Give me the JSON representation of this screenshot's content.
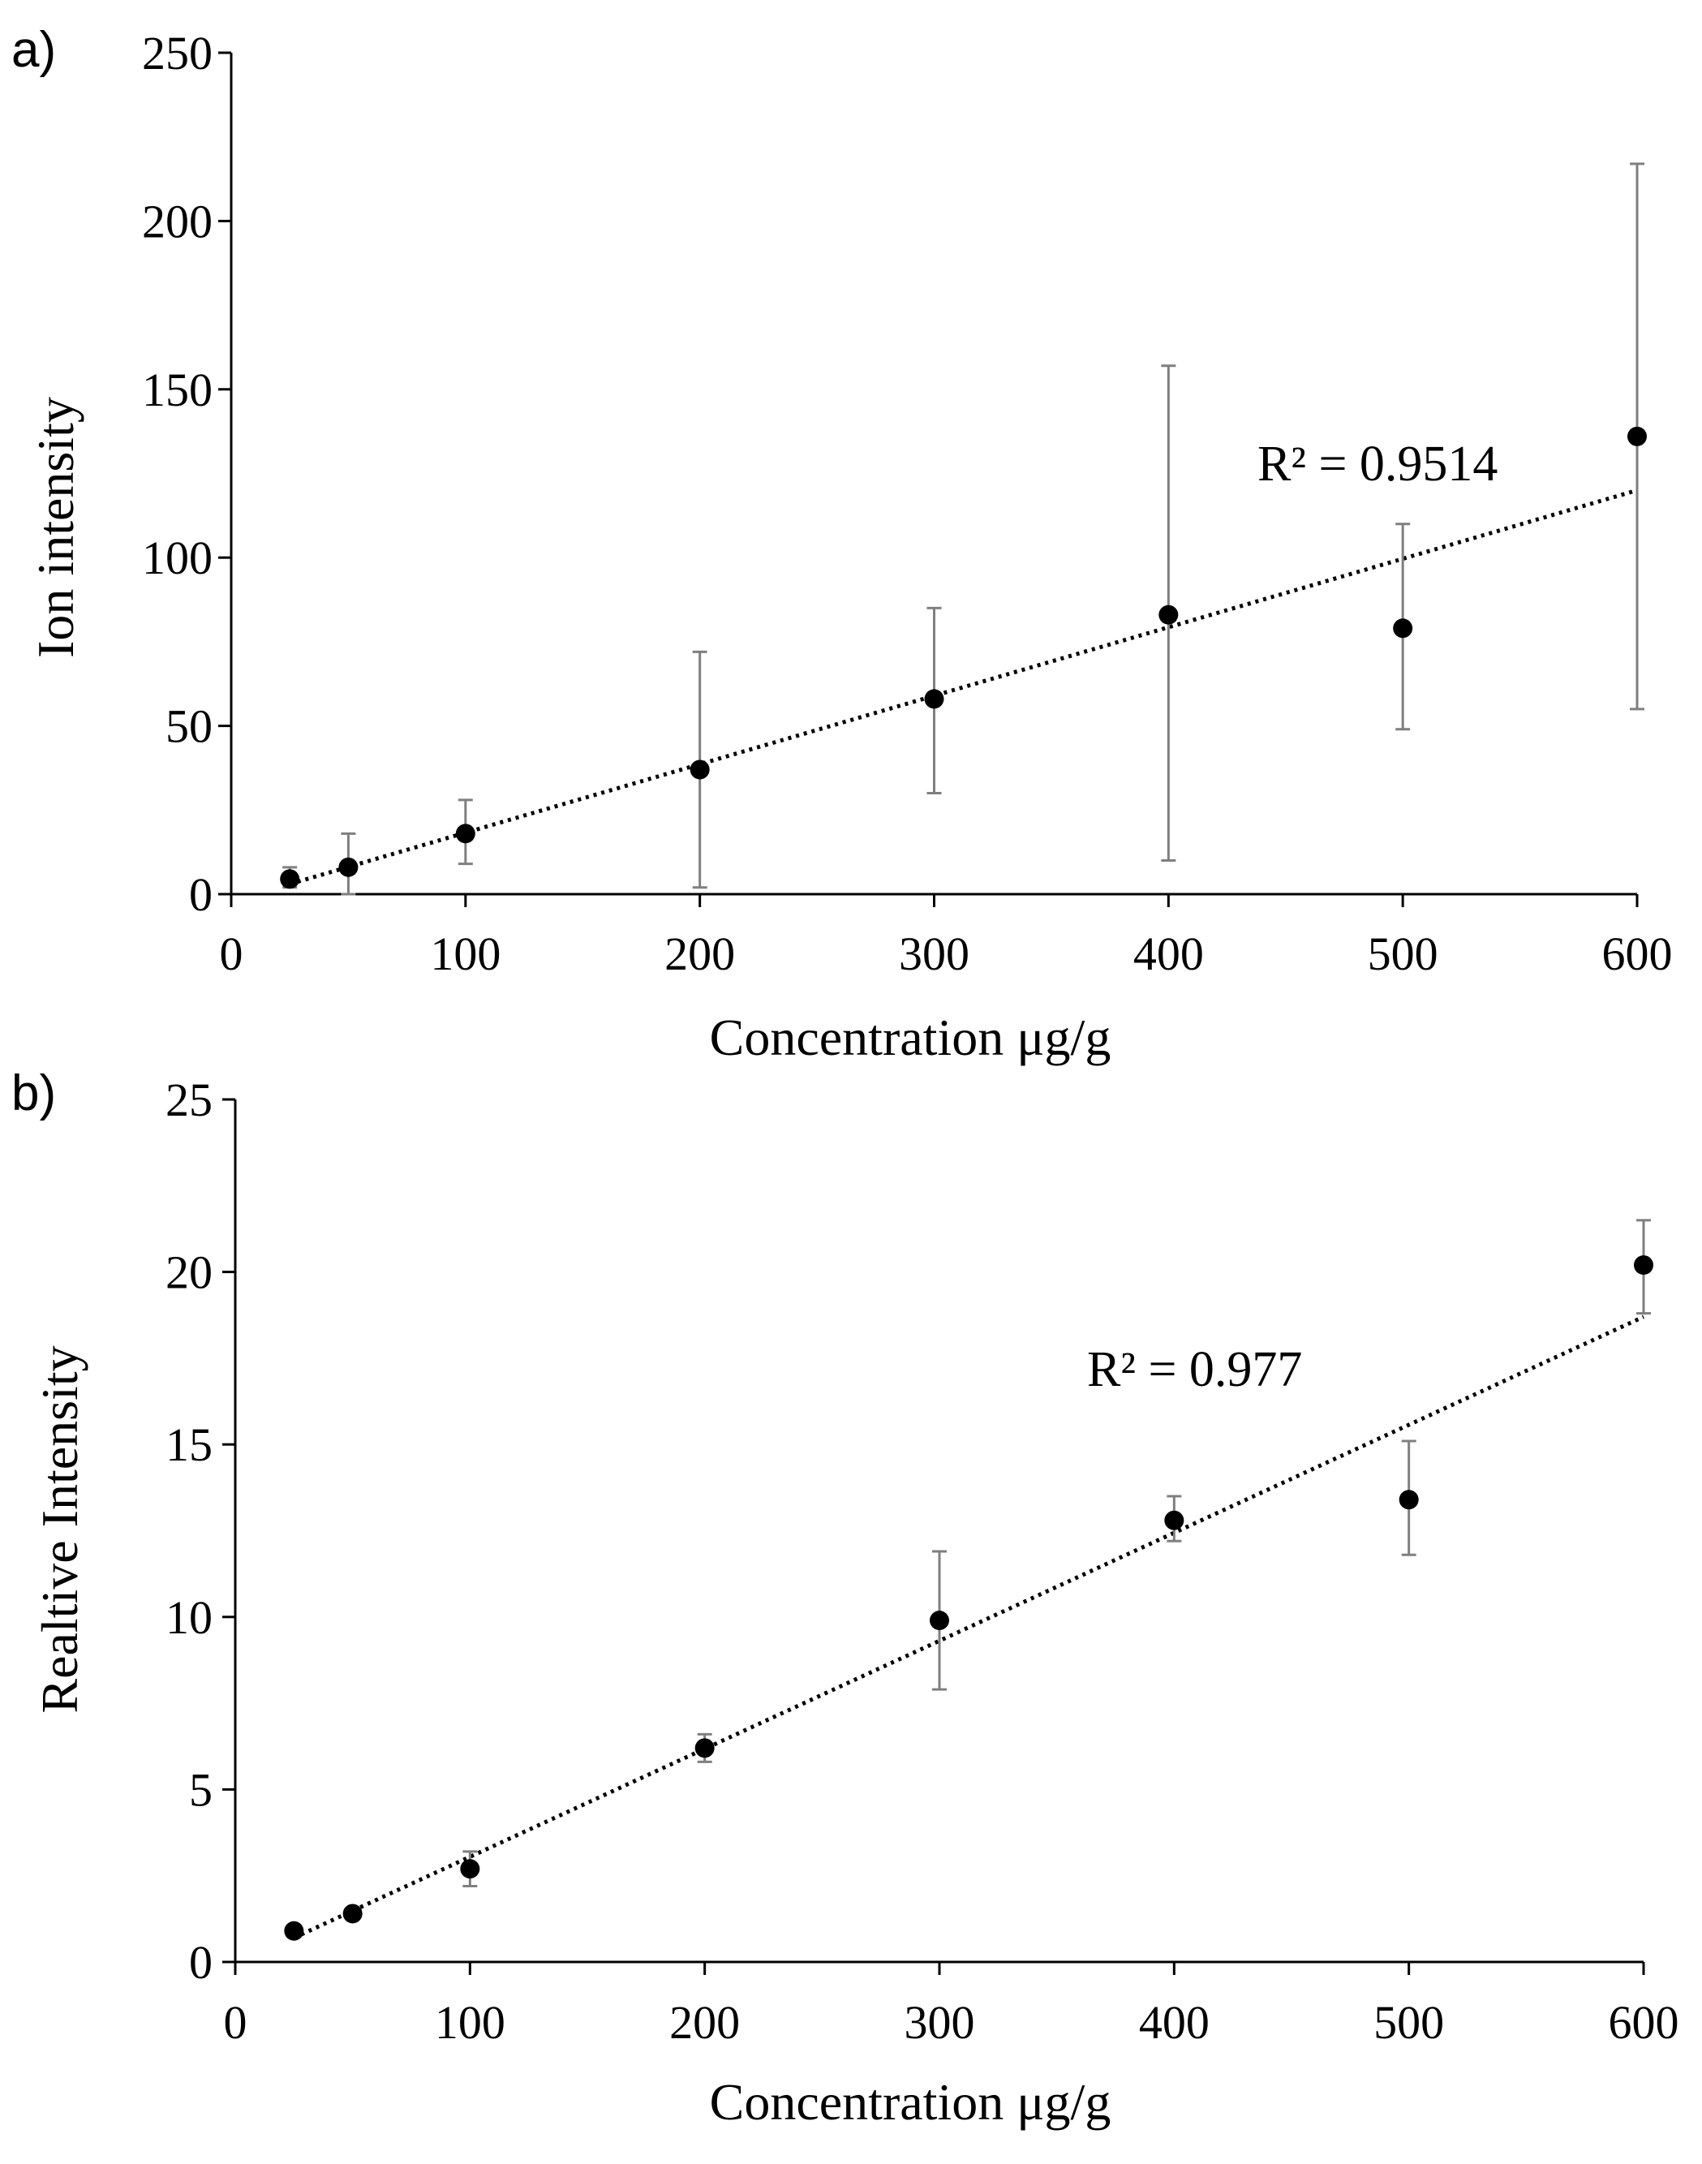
{
  "chart_data": [
    {
      "type": "scatter",
      "panel_label": "a)",
      "title": "",
      "xlabel": "Concentration μg/g",
      "ylabel": "Ion intensity",
      "xlim": [
        0,
        600
      ],
      "ylim": [
        0,
        250
      ],
      "xticks": [
        "0",
        "100",
        "200",
        "300",
        "400",
        "500",
        "600"
      ],
      "yticks": [
        "0",
        "50",
        "100",
        "150",
        "200",
        "250"
      ],
      "series": [
        {
          "name": "Ion intensity",
          "x": [
            25,
            50,
            100,
            200,
            300,
            400,
            500,
            600
          ],
          "y": [
            4.5,
            8,
            18,
            37,
            58,
            83,
            79,
            136
          ],
          "err_low": [
            2,
            0,
            9,
            2,
            30,
            10,
            49,
            55
          ],
          "err_high": [
            8,
            18,
            28,
            72,
            85,
            157,
            110,
            217
          ]
        }
      ],
      "trendline": {
        "type": "linear",
        "x": [
          25,
          600
        ],
        "y": [
          3,
          120
        ],
        "r2_label": "R² = 0.9514"
      },
      "grid": false
    },
    {
      "type": "scatter",
      "panel_label": "b)",
      "title": "",
      "xlabel": "Concentration μg/g",
      "ylabel": "Realtive Intensity",
      "xlim": [
        0,
        600
      ],
      "ylim": [
        0,
        25
      ],
      "xticks": [
        "0",
        "100",
        "200",
        "300",
        "400",
        "500",
        "600"
      ],
      "yticks": [
        "0",
        "5",
        "10",
        "15",
        "20",
        "25"
      ],
      "series": [
        {
          "name": "Relative intensity",
          "x": [
            25,
            50,
            100,
            200,
            300,
            400,
            500,
            600
          ],
          "y": [
            0.9,
            1.4,
            2.7,
            6.2,
            9.9,
            12.8,
            13.4,
            20.2
          ],
          "err_low": [
            0.9,
            1.4,
            2.2,
            5.8,
            7.9,
            12.2,
            11.8,
            18.8
          ],
          "err_high": [
            0.9,
            1.4,
            3.2,
            6.6,
            11.9,
            13.5,
            15.1,
            21.5
          ]
        }
      ],
      "trendline": {
        "type": "linear",
        "x": [
          25,
          600
        ],
        "y": [
          0.7,
          18.7
        ],
        "r2_label": "R² = 0.977"
      },
      "grid": false
    }
  ]
}
